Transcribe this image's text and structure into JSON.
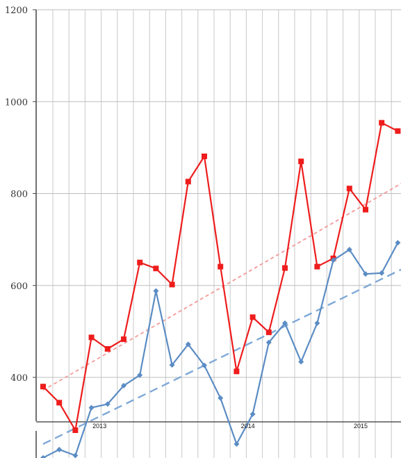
{
  "chart_data": {
    "type": "line",
    "title": "",
    "xlabel": "",
    "ylabel": "",
    "ylim": [
      300,
      1200
    ],
    "yticks": [
      400,
      600,
      800,
      1000,
      1200
    ],
    "grid": true,
    "year_labels": [
      {
        "label": "2013",
        "x_index": 3.5
      },
      {
        "label": "2014",
        "x_index": 12.7
      },
      {
        "label": "2015",
        "x_index": 19.7
      }
    ],
    "series": [
      {
        "color": "#ee1c1c",
        "marker": "square",
        "values": [
          380,
          345,
          285,
          487,
          462,
          483,
          650,
          637,
          602,
          826,
          881,
          641,
          413,
          531,
          498,
          638,
          870,
          641,
          659,
          811,
          765,
          954,
          936
        ]
      },
      {
        "color": "#5b8cc4",
        "marker": "diamond",
        "values": [
          225,
          243,
          230,
          334,
          342,
          382,
          405,
          588,
          427,
          472,
          426,
          355,
          255,
          320,
          476,
          518,
          434,
          518,
          655,
          678,
          625,
          627,
          693
        ]
      }
    ],
    "trendlines": [
      {
        "color": "#f39a9a",
        "style": "dotted",
        "start": 372,
        "end": 828
      },
      {
        "color": "#7fa9d8",
        "style": "dashed",
        "start": 255,
        "end": 640
      }
    ]
  }
}
